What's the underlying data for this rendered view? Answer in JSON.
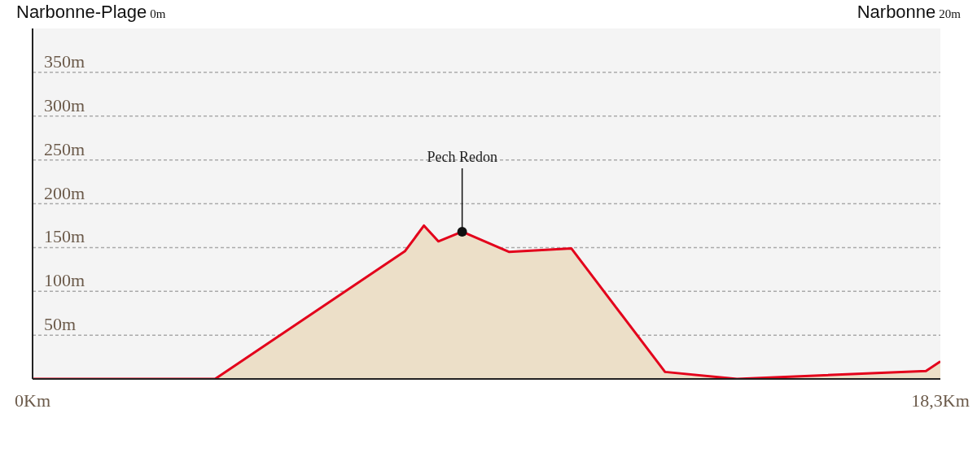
{
  "chart_data": {
    "type": "area",
    "x": [
      0,
      2.1,
      3.68,
      7.51,
      7.89,
      8.18,
      8.66,
      9.61,
      10.86,
      12.75,
      14.2,
      18.01,
      18.3
    ],
    "values": [
      0,
      0,
      0,
      146,
      175,
      157,
      168,
      145,
      149,
      8,
      0,
      9,
      20
    ],
    "color": "#ecdfc8",
    "xlim": [
      0,
      18.3
    ],
    "xticks": [
      {
        "value": 0,
        "label": "0Km"
      },
      {
        "value": 18.3,
        "label": "18,3Km"
      }
    ],
    "ylim": [
      0,
      400
    ],
    "yticks": [
      {
        "value": 50,
        "label": "50m"
      },
      {
        "value": 100,
        "label": "100m"
      },
      {
        "value": 150,
        "label": "150m"
      },
      {
        "value": 200,
        "label": "200m"
      },
      {
        "value": 250,
        "label": "250m"
      },
      {
        "value": 300,
        "label": "300m"
      },
      {
        "value": 350,
        "label": "350m"
      }
    ],
    "grid": "y",
    "legend": false,
    "marker": "none",
    "annotations": [
      "Narbonne-Plage 0m",
      "Narbonne 20m",
      {
        "text": "Pech Redon",
        "x": 8.66,
        "y": 168
      }
    ]
  }
}
